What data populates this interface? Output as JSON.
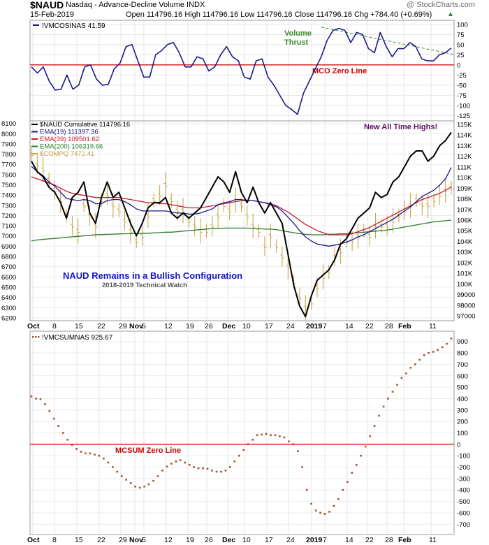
{
  "header": {
    "symbol": "$NAUD",
    "name": "Nasdaq - Advance-Decline Volume INDX",
    "watermark": "@ StockCharts.com",
    "date": "15-Feb-2019",
    "quote": "Open 114796.16  High 114796.16  Low 114796.16  Close 114796.16  Chg +784.40 (+0.69%)",
    "quote_arrow": "▲"
  },
  "x_axis": {
    "tick_labels": [
      "Oct",
      "8",
      "15",
      "22",
      "29",
      "Nov",
      "5",
      "12",
      "19",
      "26",
      "Dec",
      "10",
      "17",
      "24",
      "2019",
      "7",
      "14",
      "22",
      "28",
      "Feb",
      "11"
    ],
    "bold_labels": [
      "Oct",
      "Nov",
      "Dec",
      "2019",
      "Feb"
    ]
  },
  "colors": {
    "naud": "#000000",
    "ema19": "#1a1a8c",
    "ema39": "#cc1a2e",
    "ema200": "#2a7a2a",
    "compq": "#c8a040",
    "mco": "#1a1a8c",
    "zero_line": "#cc0000",
    "mcsum_dot": "#a0522d",
    "annotation_green": "#3a8a2a",
    "annotation_blue": "#1515c8",
    "annotation_purple": "#5a1060"
  },
  "chart_data": [
    {
      "type": "line",
      "panel": "mco",
      "legend": "!VMCOSINAS 41.59",
      "y_ticks": [
        100,
        75,
        50,
        25,
        0,
        -25,
        -50,
        -75,
        -100,
        -125
      ],
      "ylim": [
        -138,
        110
      ],
      "zero_line_label": "MCO Zero Line",
      "annotations": [
        "Volume",
        "Thrust"
      ],
      "series": [
        {
          "name": "!VMCOSINAS",
          "values": [
            -5,
            -20,
            -5,
            -40,
            -62,
            -60,
            -25,
            -60,
            -50,
            -5,
            0,
            -35,
            -50,
            -48,
            -10,
            5,
            45,
            50,
            10,
            -30,
            -30,
            25,
            35,
            50,
            55,
            30,
            -5,
            -5,
            20,
            15,
            -15,
            -5,
            25,
            45,
            20,
            10,
            -30,
            -35,
            10,
            15,
            -30,
            -50,
            -75,
            -100,
            -110,
            -122,
            -70,
            -40,
            -10,
            20,
            60,
            85,
            90,
            85,
            55,
            80,
            75,
            40,
            30,
            80,
            45,
            20,
            40,
            40,
            55,
            45,
            15,
            10,
            10,
            25,
            30,
            41.59
          ]
        }
      ],
      "trend_line": {
        "x": [
          49,
          71
        ],
        "y": [
          93,
          25
        ]
      }
    },
    {
      "type": "line",
      "panel": "naud",
      "legend": [
        "$NAUD Cumulative 114796.16",
        "EMA(19) 111397.36",
        "EMA(39) 109501.62",
        "EMA(200) 106319.66",
        "$COMPQ 7472.41"
      ],
      "left_ticks": [
        8100,
        8000,
        7900,
        7800,
        7700,
        7600,
        7500,
        7400,
        7300,
        7200,
        7100,
        7000,
        6900,
        6800,
        6700,
        6600,
        6500,
        6400,
        6300,
        6200
      ],
      "right_ticks": [
        "115K",
        "114K",
        "113K",
        "112K",
        "111K",
        "110K",
        "109K",
        "108K",
        "107K",
        "106K",
        "105K",
        "104K",
        "103K",
        "102K",
        "101K",
        "100K",
        "99000",
        "98000",
        "97000"
      ],
      "right_ylim": [
        96600,
        115900
      ],
      "left_ylim": [
        6172,
        8125
      ],
      "annotation_top": "New All Time Highs!",
      "annotation_title": "NAUD Remains in a Bullish Configuration",
      "annotation_subtitle": "2018-2019 Technical Watch",
      "series": [
        {
          "name": "$NAUD Cumulative",
          "axis": "right",
          "values": [
            112000,
            111000,
            110500,
            109500,
            109000,
            108000,
            106500,
            108500,
            109000,
            110000,
            107000,
            106000,
            108500,
            110000,
            108500,
            109000,
            107500,
            106000,
            104800,
            106000,
            107500,
            108000,
            108000,
            108500,
            107000,
            106500,
            107000,
            106500,
            107000,
            107500,
            108500,
            109500,
            110500,
            110000,
            109000,
            111000,
            109000,
            108000,
            109500,
            108000,
            107000,
            108000,
            107000,
            106000,
            103000,
            100000,
            98000,
            97000,
            99000,
            100500,
            101000,
            101500,
            102500,
            104000,
            104500,
            105500,
            106500,
            107000,
            107500,
            109000,
            108500,
            108800,
            110000,
            110500,
            111500,
            112500,
            113000,
            113000,
            112000,
            112500,
            113500,
            114000,
            114796.16
          ]
        },
        {
          "name": "EMA(19)",
          "axis": "right",
          "values": [
            111500,
            111000,
            110600,
            110000,
            109600,
            109000,
            108400,
            108300,
            108200,
            108300,
            108200,
            107900,
            107900,
            108200,
            108300,
            108300,
            108100,
            107800,
            107400,
            107200,
            107200,
            107200,
            107200,
            107200,
            107100,
            107000,
            107000,
            106900,
            106900,
            107000,
            107200,
            107400,
            107800,
            108000,
            108100,
            108300,
            108300,
            108200,
            108200,
            108100,
            108000,
            107800,
            107600,
            107200,
            106600,
            106000,
            105300,
            104700,
            104300,
            104000,
            103900,
            103800,
            103900,
            104000,
            104200,
            104400,
            104700,
            104900,
            105200,
            105500,
            105800,
            106100,
            106400,
            106800,
            107200,
            107600,
            108100,
            108600,
            108900,
            109200,
            109700,
            110300,
            111397.36
          ]
        },
        {
          "name": "EMA(39)",
          "axis": "right",
          "values": [
            110500,
            110300,
            110100,
            109900,
            109700,
            109400,
            109100,
            108900,
            108800,
            108700,
            108600,
            108500,
            108500,
            108500,
            108500,
            108500,
            108400,
            108300,
            108200,
            108100,
            108000,
            108000,
            107900,
            107900,
            107800,
            107700,
            107600,
            107500,
            107500,
            107500,
            107600,
            107700,
            107800,
            107900,
            108000,
            108100,
            108200,
            108200,
            108200,
            108100,
            108000,
            107900,
            107700,
            107400,
            107100,
            106700,
            106300,
            105900,
            105600,
            105300,
            105100,
            104900,
            104900,
            104900,
            104900,
            105000,
            105200,
            105400,
            105600,
            105900,
            106200,
            106500,
            106800,
            107100,
            107400,
            107700,
            108000,
            108300,
            108500,
            108700,
            108900,
            109200,
            109501.62
          ]
        },
        {
          "name": "EMA(200)",
          "axis": "right",
          "values": [
            104300,
            104400,
            104450,
            104500,
            104550,
            104600,
            104650,
            104700,
            104750,
            104800,
            104850,
            104900,
            104920,
            104940,
            104960,
            104980,
            105000,
            105000,
            105020,
            105050,
            105050,
            105080,
            105100,
            105150,
            105150,
            105200,
            105250,
            105300,
            105350,
            105400,
            105450,
            105500,
            105500,
            105550,
            105550,
            105550,
            105550,
            105550,
            105500,
            105500,
            105450,
            105450,
            105400,
            105300,
            105200,
            105100,
            105000,
            104950,
            104900,
            104900,
            104900,
            104950,
            104950,
            105000,
            105000,
            105050,
            105100,
            105150,
            105200,
            105250,
            105300,
            105350,
            105450,
            105550,
            105650,
            105750,
            105850,
            105950,
            106050,
            106150,
            106200,
            106250,
            106319.66
          ]
        },
        {
          "name": "$COMPQ",
          "axis": "left",
          "values": [
            7800,
            7700,
            7650,
            7550,
            7450,
            7350,
            7200,
            7100,
            7050,
            7300,
            7200,
            7100,
            7350,
            7400,
            7300,
            7250,
            7150,
            7050,
            6950,
            7000,
            7200,
            7350,
            7400,
            7500,
            7350,
            7250,
            7250,
            7150,
            7100,
            7050,
            7050,
            7100,
            7200,
            7300,
            7250,
            7350,
            7300,
            7200,
            7100,
            7050,
            6900,
            7000,
            6900,
            6800,
            6700,
            6550,
            6400,
            6300,
            6350,
            6500,
            6600,
            6650,
            6800,
            6850,
            6950,
            6950,
            7000,
            7050,
            7000,
            7100,
            7100,
            7100,
            7150,
            7200,
            7250,
            7300,
            7350,
            7300,
            7300,
            7350,
            7400,
            7450,
            7472.41
          ]
        }
      ]
    },
    {
      "type": "scatter",
      "panel": "mcsum",
      "legend": "!VMCSUMNAS 925.67",
      "y_ticks": [
        900,
        800,
        700,
        600,
        500,
        400,
        300,
        200,
        100,
        0,
        -100,
        -200,
        -300,
        -400,
        -500,
        -600,
        -700
      ],
      "ylim": [
        -790,
        990
      ],
      "zero_line_label": "MCSUM Zero Line",
      "series": [
        {
          "name": "!VMCSUMNAS",
          "values": [
            420,
            400,
            395,
            350,
            290,
            225,
            160,
            100,
            40,
            -5,
            -40,
            -65,
            -80,
            -80,
            -90,
            -100,
            -125,
            -160,
            -200,
            -240,
            -280,
            -310,
            -340,
            -370,
            -380,
            -370,
            -350,
            -320,
            -280,
            -230,
            -195,
            -170,
            -150,
            -140,
            -160,
            -180,
            -200,
            -210,
            -210,
            -215,
            -230,
            -240,
            -240,
            -230,
            -200,
            -150,
            -100,
            -50,
            0,
            40,
            80,
            85,
            90,
            80,
            80,
            70,
            60,
            25,
            0,
            -60,
            -200,
            -400,
            -520,
            -580,
            -600,
            -610,
            -590,
            -540,
            -480,
            -400,
            -330,
            -250,
            -180,
            -100,
            -20,
            70,
            160,
            250,
            330,
            400,
            460,
            520,
            580,
            620,
            670,
            700,
            740,
            780,
            800,
            810,
            825,
            850,
            880,
            925.67
          ]
        }
      ]
    }
  ]
}
